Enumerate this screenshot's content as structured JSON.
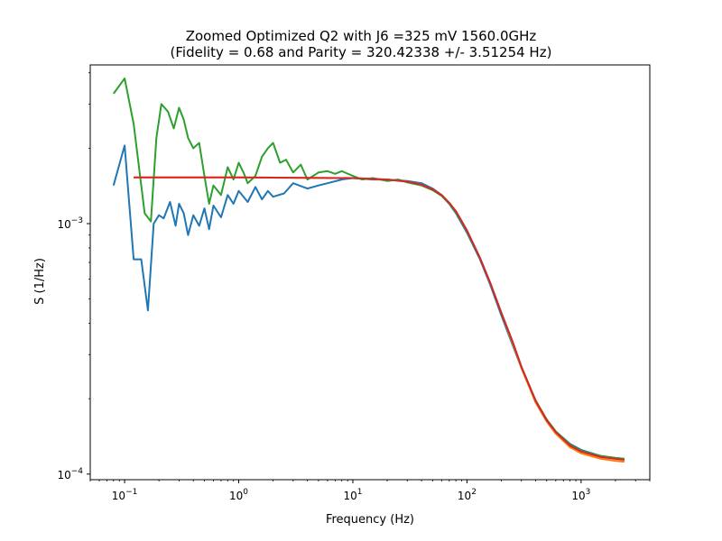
{
  "chart_data": {
    "type": "line",
    "title": "Zoomed Optimized Q2 with J6 =325 mV 1560.0GHz",
    "subtitle": "(Fidelity = 0.68 and Parity = 320.42338 +/- 3.51254 Hz)",
    "xlabel": "Frequency (Hz)",
    "ylabel": "S (1/Hz)",
    "xscale": "log",
    "yscale": "log",
    "xlim": [
      0.05,
      4000
    ],
    "ylim": [
      9.5e-05,
      0.0043
    ],
    "grid": false,
    "x_ticks": [
      {
        "value": 0.1,
        "base": "10",
        "exp": "−1"
      },
      {
        "value": 1,
        "base": "10",
        "exp": "0"
      },
      {
        "value": 10,
        "base": "10",
        "exp": "1"
      },
      {
        "value": 100,
        "base": "10",
        "exp": "2"
      },
      {
        "value": 1000,
        "base": "10",
        "exp": "3"
      }
    ],
    "y_ticks": [
      {
        "value": 0.0001,
        "base": "10",
        "exp": "−4"
      },
      {
        "value": 0.001,
        "base": "10",
        "exp": "−3"
      }
    ],
    "series": [
      {
        "color": "#1f77b4",
        "points": [
          [
            0.08,
            0.00142
          ],
          [
            0.1,
            0.00205
          ],
          [
            0.12,
            0.00072
          ],
          [
            0.14,
            0.00072
          ],
          [
            0.16,
            0.00045
          ],
          [
            0.18,
            0.001
          ],
          [
            0.2,
            0.00108
          ],
          [
            0.22,
            0.00105
          ],
          [
            0.25,
            0.00122
          ],
          [
            0.28,
            0.00098
          ],
          [
            0.3,
            0.0012
          ],
          [
            0.33,
            0.0011
          ],
          [
            0.36,
            0.0009
          ],
          [
            0.4,
            0.00108
          ],
          [
            0.45,
            0.00098
          ],
          [
            0.5,
            0.00115
          ],
          [
            0.55,
            0.00095
          ],
          [
            0.6,
            0.00118
          ],
          [
            0.7,
            0.00106
          ],
          [
            0.8,
            0.0013
          ],
          [
            0.9,
            0.0012
          ],
          [
            1.0,
            0.00135
          ],
          [
            1.2,
            0.00122
          ],
          [
            1.4,
            0.0014
          ],
          [
            1.6,
            0.00125
          ],
          [
            1.8,
            0.00135
          ],
          [
            2.0,
            0.00128
          ],
          [
            2.5,
            0.00132
          ],
          [
            3.0,
            0.00145
          ],
          [
            4.0,
            0.00138
          ],
          [
            5.0,
            0.00142
          ],
          [
            6.0,
            0.00145
          ],
          [
            8.0,
            0.0015
          ],
          [
            10,
            0.00152
          ],
          [
            15,
            0.0015
          ],
          [
            20,
            0.0015
          ],
          [
            30,
            0.00148
          ],
          [
            40,
            0.00145
          ],
          [
            50,
            0.00138
          ],
          [
            60,
            0.0013
          ],
          [
            70,
            0.0012
          ],
          [
            80,
            0.0011
          ],
          [
            100,
            0.00092
          ],
          [
            130,
            0.00072
          ],
          [
            160,
            0.00057
          ],
          [
            200,
            0.00043
          ],
          [
            250,
            0.00033
          ],
          [
            300,
            0.000265
          ],
          [
            400,
            0.000195
          ],
          [
            500,
            0.000165
          ],
          [
            600,
            0.000148
          ],
          [
            800,
            0.000132
          ],
          [
            1000,
            0.000125
          ],
          [
            1500,
            0.000118
          ],
          [
            2000,
            0.000116
          ],
          [
            2400,
            0.000115
          ]
        ]
      },
      {
        "color": "#ff7f0e",
        "points": [
          [
            0.12,
            0.00153
          ],
          [
            1,
            0.00153
          ],
          [
            10,
            0.00152
          ],
          [
            20,
            0.0015
          ],
          [
            30,
            0.00147
          ],
          [
            40,
            0.00143
          ],
          [
            50,
            0.00137
          ],
          [
            60,
            0.0013
          ],
          [
            70,
            0.00121
          ],
          [
            80,
            0.00112
          ],
          [
            100,
            0.00094
          ],
          [
            130,
            0.00073
          ],
          [
            160,
            0.00058
          ],
          [
            200,
            0.00044
          ],
          [
            250,
            0.000335
          ],
          [
            300,
            0.000265
          ],
          [
            400,
            0.000193
          ],
          [
            500,
            0.000162
          ],
          [
            600,
            0.000145
          ],
          [
            800,
            0.000128
          ],
          [
            1000,
            0.000121
          ],
          [
            1500,
            0.000115
          ],
          [
            2000,
            0.000113
          ],
          [
            2400,
            0.000112
          ]
        ]
      },
      {
        "color": "#2ca02c",
        "points": [
          [
            0.08,
            0.0033
          ],
          [
            0.1,
            0.0038
          ],
          [
            0.12,
            0.0025
          ],
          [
            0.15,
            0.0011
          ],
          [
            0.17,
            0.00102
          ],
          [
            0.19,
            0.0022
          ],
          [
            0.21,
            0.003
          ],
          [
            0.24,
            0.0028
          ],
          [
            0.27,
            0.0024
          ],
          [
            0.3,
            0.0029
          ],
          [
            0.33,
            0.0026
          ],
          [
            0.36,
            0.0022
          ],
          [
            0.4,
            0.002
          ],
          [
            0.45,
            0.0021
          ],
          [
            0.5,
            0.00155
          ],
          [
            0.55,
            0.0012
          ],
          [
            0.6,
            0.00142
          ],
          [
            0.7,
            0.0013
          ],
          [
            0.8,
            0.00168
          ],
          [
            0.9,
            0.0015
          ],
          [
            1.0,
            0.00175
          ],
          [
            1.1,
            0.0016
          ],
          [
            1.2,
            0.00145
          ],
          [
            1.4,
            0.00155
          ],
          [
            1.6,
            0.00185
          ],
          [
            1.8,
            0.002
          ],
          [
            2.0,
            0.0021
          ],
          [
            2.3,
            0.00175
          ],
          [
            2.6,
            0.0018
          ],
          [
            3.0,
            0.0016
          ],
          [
            3.5,
            0.00172
          ],
          [
            4.0,
            0.0015
          ],
          [
            5.0,
            0.0016
          ],
          [
            6.0,
            0.00162
          ],
          [
            7.0,
            0.00158
          ],
          [
            8.0,
            0.00162
          ],
          [
            10,
            0.00155
          ],
          [
            12,
            0.0015
          ],
          [
            15,
            0.00152
          ],
          [
            20,
            0.00148
          ],
          [
            25,
            0.0015
          ],
          [
            30,
            0.00146
          ],
          [
            40,
            0.00142
          ],
          [
            50,
            0.00136
          ],
          [
            60,
            0.00129
          ],
          [
            70,
            0.0012
          ],
          [
            80,
            0.00111
          ],
          [
            100,
            0.00093
          ],
          [
            130,
            0.00073
          ],
          [
            160,
            0.00058
          ],
          [
            200,
            0.00044
          ],
          [
            250,
            0.00034
          ],
          [
            300,
            0.000268
          ],
          [
            400,
            0.000197
          ],
          [
            500,
            0.000165
          ],
          [
            600,
            0.000148
          ],
          [
            800,
            0.000131
          ],
          [
            1000,
            0.000124
          ],
          [
            1500,
            0.000118
          ],
          [
            2000,
            0.000116
          ],
          [
            2400,
            0.000115
          ]
        ]
      },
      {
        "color": "#d62728",
        "points": [
          [
            0.12,
            0.00153
          ],
          [
            1,
            0.00153
          ],
          [
            10,
            0.00152
          ],
          [
            20,
            0.0015
          ],
          [
            30,
            0.00147
          ],
          [
            40,
            0.00143
          ],
          [
            50,
            0.00137
          ],
          [
            60,
            0.0013
          ],
          [
            70,
            0.00121
          ],
          [
            80,
            0.00112
          ],
          [
            100,
            0.00094
          ],
          [
            130,
            0.00073
          ],
          [
            160,
            0.00058
          ],
          [
            200,
            0.00044
          ],
          [
            250,
            0.00034
          ],
          [
            300,
            0.000268
          ],
          [
            400,
            0.000196
          ],
          [
            500,
            0.000164
          ],
          [
            600,
            0.000147
          ],
          [
            800,
            0.00013
          ],
          [
            1000,
            0.000123
          ],
          [
            1500,
            0.000117
          ],
          [
            2000,
            0.000115
          ],
          [
            2400,
            0.000114
          ]
        ]
      }
    ]
  }
}
